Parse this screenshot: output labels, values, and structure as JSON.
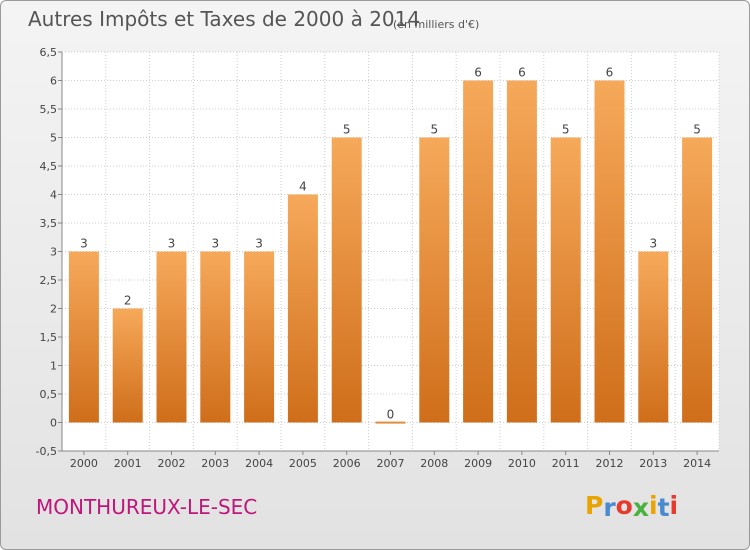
{
  "header": {
    "title": "Autres Impôts et Taxes de 2000 à 2014",
    "subtitle": "(en milliers d'€)"
  },
  "footer": {
    "commune": "MONTHUREUX-LE-SEC",
    "logo_letters": [
      "P",
      "r",
      "o",
      "x",
      "i",
      "t",
      "i"
    ],
    "logo_colors": [
      "#e8a400",
      "#4a8ad0",
      "#e63a2e",
      "#4ab03e",
      "#e8a400",
      "#4a8ad0",
      "#e63a2e"
    ]
  },
  "colors": {
    "bar_top": "#f6a95a",
    "bar_bottom": "#cf6e1a",
    "grid": "#cccccc",
    "commune": "#c0157a"
  },
  "chart_data": {
    "type": "bar",
    "title": "Autres Impôts et Taxes de 2000 à 2014",
    "subtitle": "(en milliers d'€)",
    "categories": [
      "2000",
      "2001",
      "2002",
      "2003",
      "2004",
      "2005",
      "2006",
      "2007",
      "2008",
      "2009",
      "2010",
      "2011",
      "2012",
      "2013",
      "2014"
    ],
    "values": [
      3,
      2,
      3,
      3,
      3,
      4,
      5,
      0,
      5,
      6,
      6,
      5,
      6,
      3,
      5
    ],
    "data_labels": [
      "3",
      "2",
      "3",
      "3",
      "3",
      "4",
      "5",
      "0",
      "5",
      "6",
      "6",
      "5",
      "6",
      "3",
      "5"
    ],
    "y_ticks": [
      "-0,5",
      "0",
      "0,5",
      "1",
      "1,5",
      "2",
      "2,5",
      "3",
      "3,5",
      "4",
      "4,5",
      "5",
      "5,5",
      "6",
      "6,5"
    ],
    "y_tick_values": [
      -0.5,
      0,
      0.5,
      1,
      1.5,
      2,
      2.5,
      3,
      3.5,
      4,
      4.5,
      5,
      5.5,
      6,
      6.5
    ],
    "ylim": [
      -0.5,
      6.5
    ],
    "grid": true,
    "legend": "none"
  }
}
